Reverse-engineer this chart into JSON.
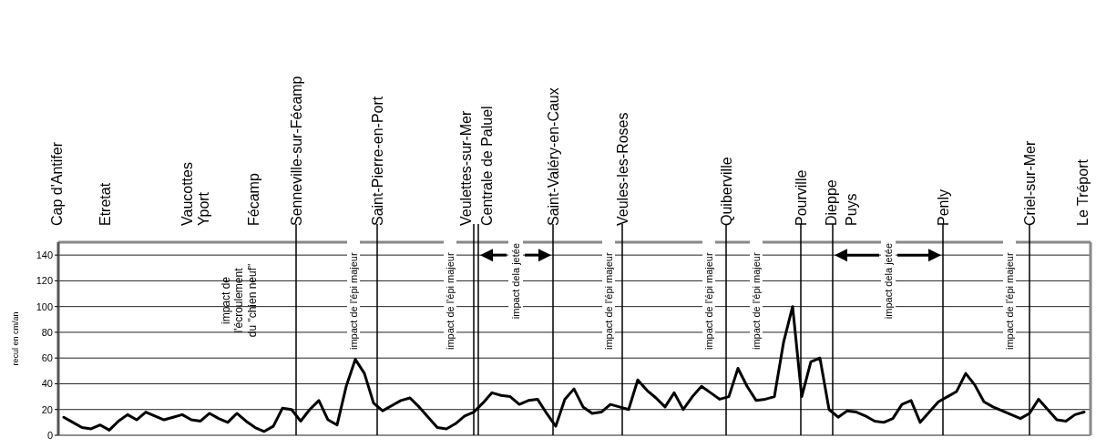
{
  "chart_data": {
    "type": "line",
    "ylabel": "recul en cm/an",
    "categories": [
      null,
      null,
      null,
      null,
      null,
      null,
      null,
      null,
      null,
      null,
      null,
      null,
      null,
      null,
      null,
      null,
      null,
      null,
      null,
      null,
      null,
      null,
      null,
      null,
      null,
      null,
      null,
      null,
      null,
      null,
      null,
      null,
      null,
      null,
      null,
      null,
      null,
      null,
      null,
      null,
      null,
      null,
      null,
      null,
      null,
      null,
      null,
      null,
      null,
      null,
      null,
      null,
      null,
      null,
      null,
      null,
      null,
      null,
      null,
      null,
      null,
      null,
      null,
      null,
      null,
      null,
      null,
      null,
      null,
      null,
      null,
      null,
      null,
      null,
      null,
      null,
      null,
      null,
      null,
      null,
      null,
      null,
      null,
      null,
      null,
      null,
      null,
      null,
      null,
      null,
      null,
      null,
      null,
      null,
      null,
      null,
      null,
      null,
      null,
      null,
      null,
      null,
      null,
      null,
      null,
      null,
      null,
      null,
      null,
      null,
      null,
      null,
      null
    ],
    "ylim": [
      0,
      150
    ],
    "yticks": [
      0,
      20,
      40,
      60,
      80,
      100,
      120,
      140
    ],
    "tick_labels": "y",
    "grid": "y",
    "series": [
      {
        "color": "#000000",
        "values": [
          14,
          10,
          6,
          5,
          8,
          4,
          11,
          16,
          12,
          18,
          15,
          12,
          14,
          16,
          12,
          11,
          17,
          13,
          10,
          17,
          11,
          6,
          3,
          7,
          21,
          20,
          11,
          20,
          27,
          12,
          8,
          38,
          59,
          48,
          25,
          19,
          23,
          27,
          29,
          22,
          14,
          6,
          5,
          9,
          15,
          18,
          25,
          33,
          31,
          30,
          24,
          27,
          28,
          17,
          7,
          28,
          36,
          22,
          17,
          18,
          24,
          22,
          20,
          43,
          35,
          29,
          22,
          33,
          20,
          30,
          38,
          33,
          28,
          30,
          52,
          38,
          27,
          28,
          30,
          72,
          100,
          30,
          57,
          60,
          20,
          14,
          19,
          18,
          15,
          11,
          10,
          13,
          24,
          27,
          10,
          18,
          26,
          30,
          34,
          48,
          39,
          26,
          22,
          19,
          16,
          13,
          17,
          28,
          20,
          12,
          11,
          16,
          18
        ]
      }
    ],
    "annotations": [
      "Cap d'Antifer",
      "Etretat",
      "Vaucottes",
      "Yport",
      "impact de\nl'écroulement\ndu \"chien neuf\"",
      "Fécamp",
      "Senneville-sur-Fécamp",
      "impact de l'épi majeur",
      "Saint-Pierre-en-Port",
      "impact de l'épi majeur",
      "Veulettes-sur-Mer",
      "Centrale de Paluel",
      "impact dela jetée",
      "Saint-Valéry-en-Caux",
      "impact de l'épi majeur",
      "Veules-les-Roses",
      "impact de l'épi majeur",
      "Quiberville",
      "impact de l'épi majeur",
      "Pourville",
      "Dieppe",
      "Puys",
      "impact dela jetée",
      "Penly",
      "impact de l'épi majeur",
      "Criel-sur-Mer",
      "Le Tréport"
    ]
  }
}
